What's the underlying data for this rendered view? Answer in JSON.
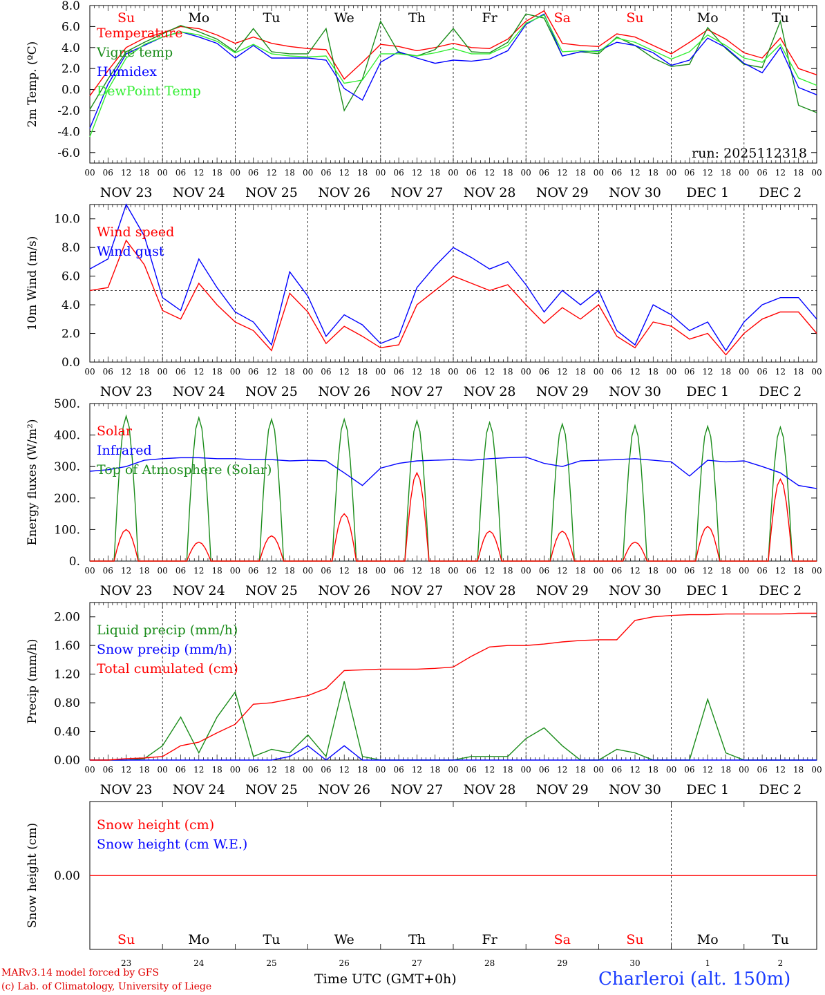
{
  "footer": {
    "credit_line1": "MARv3.14 model forced by GFS",
    "credit_line2": "(c) Lab. of Climatology, University of Liege",
    "time_axis_title": "Time UTC (GMT+0h)",
    "station": "Charleroi (alt. 150m)"
  },
  "colors": {
    "red": "#ff0000",
    "green": "#1a8c1a",
    "blue": "#0000ff",
    "light_green": "#33ee33"
  },
  "chart_data": [
    {
      "type": "line",
      "ylabel": "2m Temp. (ºC)",
      "ylim": [
        -7,
        8
      ],
      "yticks": [
        "8.0",
        "6.0",
        "4.0",
        "2.0",
        "0.0",
        "-2.0",
        "-4.0",
        "-6.0"
      ],
      "ytick_values": [
        8,
        6,
        4,
        2,
        0,
        -2,
        -4,
        -6
      ],
      "top_day_labels": [
        "Su",
        "Mo",
        "Tu",
        "We",
        "Th",
        "Fr",
        "Sa",
        "Su",
        "Mo",
        "Tu"
      ],
      "top_day_weekend": [
        true,
        false,
        false,
        false,
        false,
        false,
        true,
        true,
        false,
        false
      ],
      "annotation": "run: 2025112318",
      "hour_labels": [
        "00",
        "06",
        "12",
        "18"
      ],
      "date_labels": [
        "NOV 23",
        "NOV 24",
        "NOV 25",
        "NOV 26",
        "NOV 27",
        "NOV 28",
        "NOV 29",
        "NOV 30",
        "DEC 1",
        "DEC 2"
      ],
      "x_hours": [
        0,
        6,
        12,
        18,
        24,
        30,
        36,
        42,
        48,
        54,
        60,
        66,
        72,
        78,
        84,
        90,
        96,
        102,
        108,
        114,
        120,
        126,
        132,
        138,
        144,
        150,
        156,
        162,
        168,
        174,
        180,
        186,
        192,
        198,
        204,
        210,
        216,
        222,
        228,
        234,
        240
      ],
      "series": [
        {
          "name": "Temperature",
          "color": "red",
          "values": [
            -0.6,
            1.8,
            4.0,
            4.9,
            5.4,
            6.0,
            5.8,
            5.2,
            4.4,
            5.0,
            4.4,
            4.1,
            3.9,
            3.8,
            1.0,
            2.6,
            4.3,
            4.1,
            3.7,
            4.0,
            4.4,
            4.0,
            3.9,
            4.8,
            6.5,
            7.5,
            4.4,
            4.2,
            4.1,
            5.3,
            5.0,
            4.2,
            3.4,
            4.5,
            5.7,
            4.8,
            3.5,
            3.0,
            4.9,
            2.0,
            1.4
          ]
        },
        {
          "name": "Vigne temp",
          "color": "green",
          "values": [
            -1.9,
            1.0,
            3.6,
            4.5,
            5.3,
            6.1,
            5.5,
            4.8,
            3.6,
            5.8,
            3.6,
            3.4,
            3.4,
            5.8,
            -2.0,
            1.0,
            6.5,
            3.5,
            3.2,
            3.8,
            5.8,
            3.6,
            3.5,
            4.5,
            7.2,
            6.8,
            3.2,
            3.6,
            3.4,
            5.0,
            4.2,
            3.0,
            2.2,
            2.4,
            5.9,
            3.9,
            2.4,
            2.1,
            6.5,
            -1.5,
            -2.2
          ]
        },
        {
          "name": "Humidex",
          "color": "blue",
          "values": [
            -3.7,
            0.5,
            3.4,
            4.2,
            5.0,
            5.5,
            5.0,
            4.4,
            3.0,
            4.2,
            3.0,
            3.0,
            3.0,
            2.8,
            0.1,
            -1.0,
            2.6,
            3.6,
            3.0,
            2.5,
            2.8,
            2.7,
            2.9,
            3.7,
            6.2,
            7.2,
            3.2,
            3.6,
            3.7,
            4.5,
            4.2,
            3.5,
            2.3,
            2.8,
            4.9,
            4.0,
            2.5,
            1.6,
            4.0,
            0.2,
            -0.5
          ]
        },
        {
          "name": "DewPoint Temp",
          "color": "light_green",
          "values": [
            -4.5,
            0.0,
            3.0,
            4.3,
            5.0,
            5.5,
            5.2,
            4.6,
            3.5,
            4.3,
            3.4,
            3.2,
            3.1,
            3.2,
            0.6,
            0.9,
            3.4,
            3.4,
            3.2,
            3.5,
            3.9,
            3.4,
            3.4,
            4.2,
            6.3,
            7.1,
            3.6,
            3.7,
            3.6,
            4.9,
            4.5,
            3.7,
            2.9,
            3.6,
            5.2,
            4.2,
            3.0,
            2.6,
            4.3,
            1.1,
            0.4
          ]
        }
      ]
    },
    {
      "type": "line",
      "ylabel": "10m Wind (m/s)",
      "ylim": [
        0,
        11
      ],
      "yticks": [
        "10.0",
        "8.0",
        "6.0",
        "4.0",
        "2.0",
        "0.0"
      ],
      "ytick_values": [
        10,
        8,
        6,
        4,
        2,
        0
      ],
      "reference_line": 5.0,
      "hour_labels": [
        "00",
        "06",
        "12",
        "18"
      ],
      "date_labels": [
        "NOV 23",
        "NOV 24",
        "NOV 25",
        "NOV 26",
        "NOV 27",
        "NOV 28",
        "NOV 29",
        "NOV 30",
        "DEC 1",
        "DEC 2"
      ],
      "x_hours": [
        0,
        6,
        12,
        18,
        24,
        30,
        36,
        42,
        48,
        54,
        60,
        66,
        72,
        78,
        84,
        90,
        96,
        102,
        108,
        114,
        120,
        126,
        132,
        138,
        144,
        150,
        156,
        162,
        168,
        174,
        180,
        186,
        192,
        198,
        204,
        210,
        216,
        222,
        228,
        234,
        240
      ],
      "series": [
        {
          "name": "Wind speed",
          "color": "red",
          "values": [
            5.0,
            5.2,
            8.5,
            6.8,
            3.6,
            3.0,
            5.5,
            4.0,
            2.8,
            2.2,
            0.8,
            4.8,
            3.5,
            1.3,
            2.5,
            1.8,
            1.0,
            1.2,
            4.0,
            5.0,
            6.0,
            5.5,
            5.0,
            5.4,
            4.0,
            2.7,
            3.8,
            3.0,
            4.0,
            1.8,
            1.0,
            2.8,
            2.5,
            1.6,
            2.0,
            0.5,
            2.0,
            3.0,
            3.5,
            3.5,
            2.0
          ]
        },
        {
          "name": "Wind gust",
          "color": "blue",
          "values": [
            6.5,
            7.2,
            11.0,
            8.8,
            4.5,
            3.6,
            7.2,
            5.2,
            3.5,
            2.8,
            1.2,
            6.3,
            4.6,
            1.8,
            3.3,
            2.6,
            1.3,
            1.8,
            5.2,
            6.7,
            8.0,
            7.3,
            6.5,
            7.0,
            5.4,
            3.5,
            5.0,
            4.0,
            5.0,
            2.2,
            1.2,
            4.0,
            3.3,
            2.2,
            2.8,
            0.8,
            2.8,
            4.0,
            4.5,
            4.5,
            3.0
          ]
        }
      ]
    },
    {
      "type": "line",
      "ylabel": "Energy fluxes (W/m²)",
      "ylim": [
        0,
        500
      ],
      "yticks": [
        "500.",
        "400.",
        "300.",
        "200.",
        "100.",
        "0."
      ],
      "ytick_values": [
        500,
        400,
        300,
        200,
        100,
        0
      ],
      "hour_labels": [
        "00",
        "06",
        "12",
        "18"
      ],
      "date_labels": [
        "NOV 23",
        "NOV 24",
        "NOV 25",
        "NOV 26",
        "NOV 27",
        "NOV 28",
        "NOV 29",
        "NOV 30",
        "DEC 1",
        "DEC 2"
      ],
      "x_hours": [
        0,
        6,
        12,
        18,
        24,
        30,
        36,
        42,
        48,
        54,
        60,
        66,
        72,
        78,
        84,
        90,
        96,
        102,
        108,
        114,
        120,
        126,
        132,
        138,
        144,
        150,
        156,
        162,
        168,
        174,
        180,
        186,
        192,
        198,
        204,
        210,
        216,
        222,
        228,
        234,
        240
      ],
      "day_peaks": {
        "toa_peak": [
          460,
          455,
          450,
          450,
          445,
          440,
          435,
          430,
          428,
          425
        ],
        "solar_peak": [
          100,
          60,
          80,
          150,
          280,
          95,
          95,
          60,
          110,
          260
        ],
        "center_hours": [
          12,
          36,
          60,
          84,
          108,
          132,
          156,
          180,
          204,
          228
        ],
        "half_width_hours": 4
      },
      "series": [
        {
          "name": "Solar",
          "color": "red",
          "values": []
        },
        {
          "name": "Infrared",
          "color": "blue",
          "values": [
            285,
            290,
            300,
            320,
            325,
            328,
            328,
            325,
            325,
            322,
            322,
            318,
            320,
            318,
            280,
            240,
            295,
            310,
            318,
            320,
            322,
            320,
            325,
            328,
            330,
            310,
            300,
            318,
            320,
            322,
            325,
            320,
            315,
            270,
            320,
            315,
            318,
            300,
            280,
            240,
            230
          ]
        },
        {
          "name": "Top of Atmosphere (Solar)",
          "color": "green",
          "values": []
        }
      ]
    },
    {
      "type": "line",
      "ylabel": "Precip (mm/h)",
      "ylim": [
        0,
        2.2
      ],
      "yticks": [
        "2.00",
        "1.60",
        "1.20",
        "0.80",
        "0.40",
        "0.00"
      ],
      "ytick_values": [
        2.0,
        1.6,
        1.2,
        0.8,
        0.4,
        0.0
      ],
      "hour_labels": [
        "00",
        "06",
        "12",
        "18"
      ],
      "date_labels": [
        "NOV 23",
        "NOV 24",
        "NOV 25",
        "NOV 26",
        "NOV 27",
        "NOV 28",
        "NOV 29",
        "NOV 30",
        "DEC 1",
        "DEC 2"
      ],
      "x_hours": [
        0,
        6,
        12,
        18,
        24,
        30,
        36,
        42,
        48,
        54,
        60,
        66,
        72,
        78,
        84,
        90,
        96,
        102,
        108,
        114,
        120,
        126,
        132,
        138,
        144,
        150,
        156,
        162,
        168,
        174,
        180,
        186,
        192,
        198,
        204,
        210,
        216,
        222,
        228,
        234,
        240
      ],
      "series": [
        {
          "name": "Liquid precip (mm/h)",
          "color": "green",
          "values": [
            0,
            0,
            0,
            0.02,
            0.2,
            0.6,
            0.1,
            0.6,
            0.95,
            0.05,
            0.15,
            0.1,
            0.35,
            0.05,
            1.1,
            0.05,
            0,
            0,
            0,
            0,
            0,
            0.05,
            0.05,
            0.05,
            0.3,
            0.45,
            0.2,
            0,
            0,
            0.15,
            0.1,
            0,
            0,
            0,
            0.85,
            0.1,
            0,
            0,
            0,
            0,
            0
          ]
        },
        {
          "name": "Snow precip (mm/h)",
          "color": "blue",
          "values": [
            0,
            0,
            0,
            0,
            0,
            0,
            0,
            0,
            0,
            0,
            0,
            0.05,
            0.2,
            0,
            0.2,
            0,
            0,
            0,
            0,
            0,
            0,
            0,
            0,
            0,
            0,
            0,
            0,
            0,
            0,
            0,
            0,
            0,
            0,
            0,
            0,
            0,
            0,
            0,
            0,
            0,
            0
          ]
        },
        {
          "name": "Total cumulated (cm)",
          "color": "red",
          "values": [
            0,
            0,
            0.02,
            0.03,
            0.05,
            0.2,
            0.25,
            0.38,
            0.5,
            0.78,
            0.8,
            0.85,
            0.9,
            1.0,
            1.25,
            1.26,
            1.27,
            1.27,
            1.27,
            1.28,
            1.3,
            1.45,
            1.58,
            1.6,
            1.6,
            1.62,
            1.65,
            1.67,
            1.68,
            1.68,
            1.95,
            2.0,
            2.02,
            2.03,
            2.03,
            2.04,
            2.04,
            2.04,
            2.04,
            2.05,
            2.05
          ]
        }
      ]
    },
    {
      "type": "line",
      "ylabel": "Snow height (cm)",
      "ylim": [
        -1,
        1
      ],
      "yticks": [
        "0.00"
      ],
      "ytick_values": [
        0
      ],
      "bottom_day_labels": [
        "Su",
        "Mo",
        "Tu",
        "We",
        "Th",
        "Fr",
        "Sa",
        "Su",
        "Mo",
        "Tu"
      ],
      "bottom_day_weekend": [
        true,
        false,
        false,
        false,
        false,
        false,
        true,
        true,
        false,
        false
      ],
      "bottom_day_numbers": [
        "23",
        "24",
        "25",
        "26",
        "27",
        "28",
        "29",
        "30",
        "1",
        "2"
      ],
      "series": [
        {
          "name": "Snow height (cm)",
          "color": "red",
          "values": [
            0,
            0
          ]
        },
        {
          "name": "Snow height (cm W.E.)",
          "color": "blue",
          "values": []
        }
      ]
    }
  ]
}
